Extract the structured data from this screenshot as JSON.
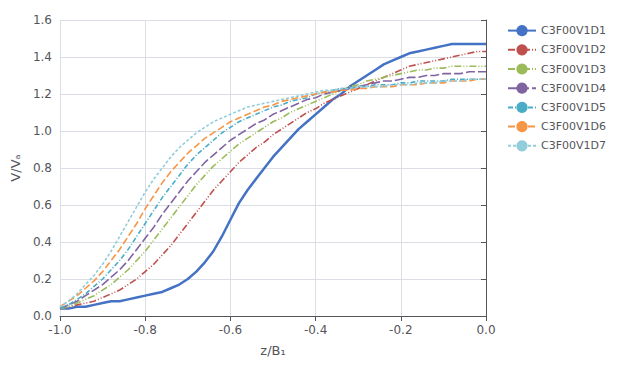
{
  "chart_data": {
    "type": "line",
    "xlabel": "z/B₁",
    "ylabel": "V/Vₐ",
    "x": [
      -1.0,
      -0.98,
      -0.96,
      -0.94,
      -0.92,
      -0.9,
      -0.88,
      -0.86,
      -0.84,
      -0.82,
      -0.8,
      -0.78,
      -0.76,
      -0.74,
      -0.72,
      -0.7,
      -0.68,
      -0.66,
      -0.64,
      -0.62,
      -0.6,
      -0.58,
      -0.56,
      -0.54,
      -0.52,
      -0.5,
      -0.48,
      -0.46,
      -0.44,
      -0.42,
      -0.4,
      -0.38,
      -0.36,
      -0.34,
      -0.32,
      -0.3,
      -0.28,
      -0.26,
      -0.24,
      -0.22,
      -0.2,
      -0.18,
      -0.16,
      -0.14,
      -0.12,
      -0.1,
      -0.08,
      -0.06,
      -0.04,
      -0.02,
      0.0
    ],
    "series": [
      {
        "name": "C3F00V1D1",
        "color": "#4472C4",
        "line_style": "solid",
        "values": [
          0.04,
          0.04,
          0.05,
          0.05,
          0.06,
          0.07,
          0.08,
          0.08,
          0.09,
          0.1,
          0.11,
          0.12,
          0.13,
          0.15,
          0.17,
          0.2,
          0.24,
          0.29,
          0.35,
          0.43,
          0.52,
          0.61,
          0.68,
          0.74,
          0.8,
          0.86,
          0.91,
          0.96,
          1.01,
          1.05,
          1.09,
          1.13,
          1.17,
          1.2,
          1.24,
          1.27,
          1.3,
          1.33,
          1.36,
          1.38,
          1.4,
          1.42,
          1.43,
          1.44,
          1.45,
          1.46,
          1.47,
          1.47,
          1.47,
          1.47,
          1.47
        ]
      },
      {
        "name": "C3F00V1D2",
        "color": "#C0504D",
        "line_style": "dashdotdot",
        "values": [
          0.04,
          0.05,
          0.06,
          0.07,
          0.08,
          0.1,
          0.12,
          0.14,
          0.17,
          0.2,
          0.24,
          0.28,
          0.33,
          0.38,
          0.44,
          0.5,
          0.56,
          0.62,
          0.68,
          0.73,
          0.78,
          0.83,
          0.87,
          0.91,
          0.94,
          0.98,
          1.01,
          1.04,
          1.07,
          1.1,
          1.12,
          1.15,
          1.17,
          1.19,
          1.21,
          1.23,
          1.25,
          1.27,
          1.29,
          1.31,
          1.33,
          1.35,
          1.36,
          1.37,
          1.38,
          1.39,
          1.4,
          1.41,
          1.42,
          1.43,
          1.43
        ]
      },
      {
        "name": "C3F00V1D3",
        "color": "#9BBB59",
        "line_style": "dashdotdot",
        "values": [
          0.04,
          0.05,
          0.07,
          0.09,
          0.11,
          0.14,
          0.17,
          0.21,
          0.25,
          0.3,
          0.35,
          0.41,
          0.47,
          0.53,
          0.59,
          0.65,
          0.71,
          0.76,
          0.81,
          0.85,
          0.89,
          0.93,
          0.96,
          0.99,
          1.02,
          1.05,
          1.07,
          1.1,
          1.12,
          1.14,
          1.16,
          1.18,
          1.2,
          1.22,
          1.24,
          1.25,
          1.27,
          1.28,
          1.29,
          1.3,
          1.31,
          1.32,
          1.33,
          1.33,
          1.34,
          1.34,
          1.35,
          1.35,
          1.35,
          1.35,
          1.35
        ]
      },
      {
        "name": "C3F00V1D4",
        "color": "#8064A2",
        "line_style": "longdashed",
        "values": [
          0.04,
          0.06,
          0.08,
          0.11,
          0.14,
          0.17,
          0.21,
          0.25,
          0.3,
          0.36,
          0.42,
          0.48,
          0.55,
          0.61,
          0.67,
          0.73,
          0.78,
          0.83,
          0.87,
          0.91,
          0.95,
          0.98,
          1.01,
          1.04,
          1.06,
          1.09,
          1.11,
          1.13,
          1.15,
          1.17,
          1.18,
          1.2,
          1.21,
          1.22,
          1.23,
          1.24,
          1.25,
          1.26,
          1.27,
          1.27,
          1.28,
          1.29,
          1.29,
          1.3,
          1.3,
          1.31,
          1.31,
          1.31,
          1.32,
          1.32,
          1.32
        ]
      },
      {
        "name": "C3F00V1D5",
        "color": "#4BACC6",
        "line_style": "dashdot",
        "values": [
          0.04,
          0.06,
          0.09,
          0.12,
          0.16,
          0.2,
          0.25,
          0.3,
          0.36,
          0.43,
          0.5,
          0.57,
          0.64,
          0.7,
          0.76,
          0.82,
          0.87,
          0.91,
          0.95,
          0.99,
          1.02,
          1.05,
          1.07,
          1.09,
          1.11,
          1.13,
          1.14,
          1.16,
          1.17,
          1.18,
          1.2,
          1.21,
          1.22,
          1.23,
          1.23,
          1.24,
          1.24,
          1.25,
          1.25,
          1.25,
          1.26,
          1.26,
          1.27,
          1.27,
          1.27,
          1.27,
          1.28,
          1.28,
          1.28,
          1.28,
          1.28
        ]
      },
      {
        "name": "C3F00V1D6",
        "color": "#F79646",
        "line_style": "dashed",
        "values": [
          0.05,
          0.08,
          0.11,
          0.15,
          0.19,
          0.24,
          0.3,
          0.36,
          0.43,
          0.5,
          0.58,
          0.65,
          0.72,
          0.78,
          0.83,
          0.88,
          0.92,
          0.96,
          0.99,
          1.02,
          1.05,
          1.07,
          1.09,
          1.11,
          1.13,
          1.14,
          1.16,
          1.17,
          1.18,
          1.19,
          1.2,
          1.21,
          1.21,
          1.22,
          1.22,
          1.23,
          1.23,
          1.24,
          1.24,
          1.24,
          1.25,
          1.25,
          1.25,
          1.26,
          1.26,
          1.26,
          1.27,
          1.27,
          1.27,
          1.28,
          1.28
        ]
      },
      {
        "name": "C3F00V1D7",
        "color": "#92CDDC",
        "line_style": "dotted",
        "values": [
          0.05,
          0.08,
          0.12,
          0.17,
          0.22,
          0.28,
          0.35,
          0.43,
          0.51,
          0.59,
          0.67,
          0.74,
          0.8,
          0.86,
          0.91,
          0.95,
          0.99,
          1.02,
          1.05,
          1.07,
          1.09,
          1.11,
          1.13,
          1.14,
          1.15,
          1.16,
          1.17,
          1.18,
          1.19,
          1.2,
          1.21,
          1.22,
          1.22,
          1.23,
          1.23,
          1.24,
          1.24,
          1.24,
          1.24,
          1.25,
          1.25,
          1.25,
          1.26,
          1.26,
          1.26,
          1.27,
          1.27,
          1.27,
          1.28,
          1.28,
          1.28
        ]
      }
    ],
    "xlim": [
      -1.0,
      0.0
    ],
    "ylim": [
      0.0,
      1.6
    ],
    "xticks": [
      {
        "value": -1.0,
        "label": "-1.0"
      },
      -0.8,
      -0.6,
      -0.4,
      -0.2,
      {
        "value": 0.0,
        "label": "0.0"
      }
    ],
    "yticks": [
      {
        "value": 0.0,
        "label": "0.0"
      },
      0.2,
      0.4,
      0.6,
      0.8,
      {
        "value": 1.0,
        "label": "1.0"
      },
      1.2,
      1.4,
      1.6
    ],
    "grid": true,
    "legend": "upper right"
  }
}
